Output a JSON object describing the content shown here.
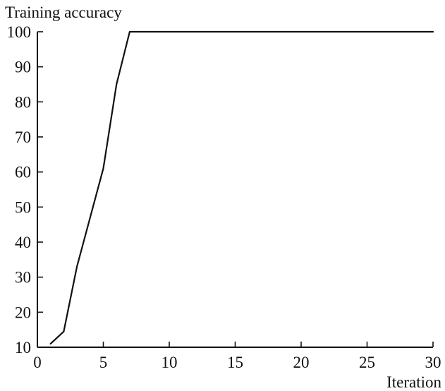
{
  "chart_data": {
    "type": "line",
    "ylabel": "Training accuracy",
    "xlabel": "Iteration",
    "xlim": [
      0,
      30
    ],
    "ylim": [
      10,
      100
    ],
    "x_ticks": [
      0,
      5,
      10,
      15,
      20,
      25,
      30
    ],
    "y_ticks": [
      10,
      20,
      30,
      40,
      50,
      60,
      70,
      80,
      90,
      100
    ],
    "grid": false,
    "legend": "none",
    "series": [
      {
        "color": "#111111",
        "points": [
          {
            "x": 1,
            "y": 11
          },
          {
            "x": 2,
            "y": 14.5
          },
          {
            "x": 3,
            "y": 33
          },
          {
            "x": 4,
            "y": 47
          },
          {
            "x": 5,
            "y": 61
          },
          {
            "x": 6,
            "y": 85
          },
          {
            "x": 7,
            "y": 100
          },
          {
            "x": 8,
            "y": 100
          },
          {
            "x": 10,
            "y": 100
          },
          {
            "x": 15,
            "y": 100
          },
          {
            "x": 20,
            "y": 100
          },
          {
            "x": 25,
            "y": 100
          },
          {
            "x": 30,
            "y": 100
          }
        ]
      }
    ]
  }
}
